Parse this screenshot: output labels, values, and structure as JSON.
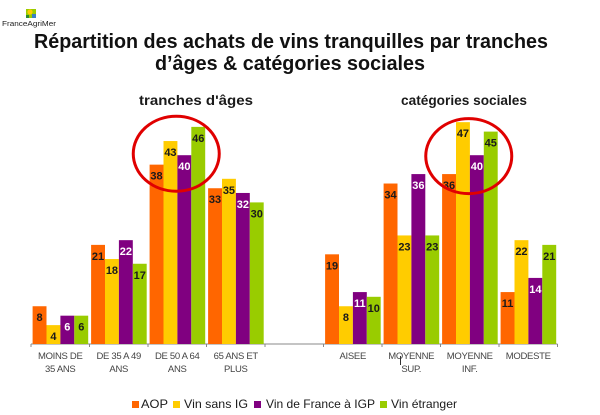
{
  "logo": {
    "text": "FranceAgriMer"
  },
  "title": {
    "line1": "Répartition des achats de vins tranquilles par tranches",
    "line2": "d’âges & catégories sociales"
  },
  "legend": {
    "items": [
      {
        "label": "AOP",
        "color": "#FF6600"
      },
      {
        "label": "Vin sans IG",
        "color": "#FFCC00"
      },
      {
        "label": "Vin de France à IGP",
        "color": "#800080"
      },
      {
        "label": "Vin étranger",
        "color": "#99CC00"
      }
    ],
    "placement": "bottom"
  },
  "chart_data": [
    {
      "type": "bar",
      "title": "tranches d'âges",
      "categories": [
        "MOINS DE\n35 ANS",
        "DE 35 A 49\nANS",
        "DE 50 A 64\nANS",
        "65 ANS ET\nPLUS"
      ],
      "series": [
        {
          "name": "AOP",
          "color": "#FF6600",
          "label_color": "#1a1a1a",
          "values": [
            8,
            21,
            38,
            33
          ]
        },
        {
          "name": "Vin sans IG",
          "color": "#FFCC00",
          "label_color": "#1a1a1a",
          "values": [
            4,
            18,
            43,
            35
          ]
        },
        {
          "name": "Vin de France à IGP",
          "color": "#800080",
          "label_color": "#ffffff",
          "values": [
            6,
            22,
            40,
            32
          ]
        },
        {
          "name": "Vin étranger",
          "color": "#99CC00",
          "label_color": "#1a1a1a",
          "values": [
            6,
            17,
            46,
            30
          ]
        }
      ],
      "xlabel": "",
      "ylabel": "",
      "ylim": [
        0,
        50
      ],
      "grid": false,
      "annotations": [
        {
          "type": "ellipse",
          "category_index": 2,
          "color": "#E00000"
        }
      ]
    },
    {
      "type": "bar",
      "title": "catégories sociales",
      "categories": [
        "AISEE",
        "MOYENNE\nSUP.",
        "MOYENNE\nINF.",
        "MODESTE"
      ],
      "series": [
        {
          "name": "AOP",
          "color": "#FF6600",
          "label_color": "#1a1a1a",
          "values": [
            19,
            34,
            36,
            11
          ]
        },
        {
          "name": "Vin sans IG",
          "color": "#FFCC00",
          "label_color": "#1a1a1a",
          "values": [
            8,
            23,
            47,
            22
          ]
        },
        {
          "name": "Vin de France à IGP",
          "color": "#800080",
          "label_color": "#ffffff",
          "values": [
            11,
            36,
            40,
            14
          ]
        },
        {
          "name": "Vin étranger",
          "color": "#99CC00",
          "label_color": "#1a1a1a",
          "values": [
            10,
            23,
            45,
            21
          ]
        }
      ],
      "xlabel": "",
      "ylabel": "",
      "ylim": [
        0,
        50
      ],
      "grid": false,
      "annotations": [
        {
          "type": "ellipse",
          "category_index": 2,
          "color": "#E00000"
        }
      ]
    }
  ]
}
